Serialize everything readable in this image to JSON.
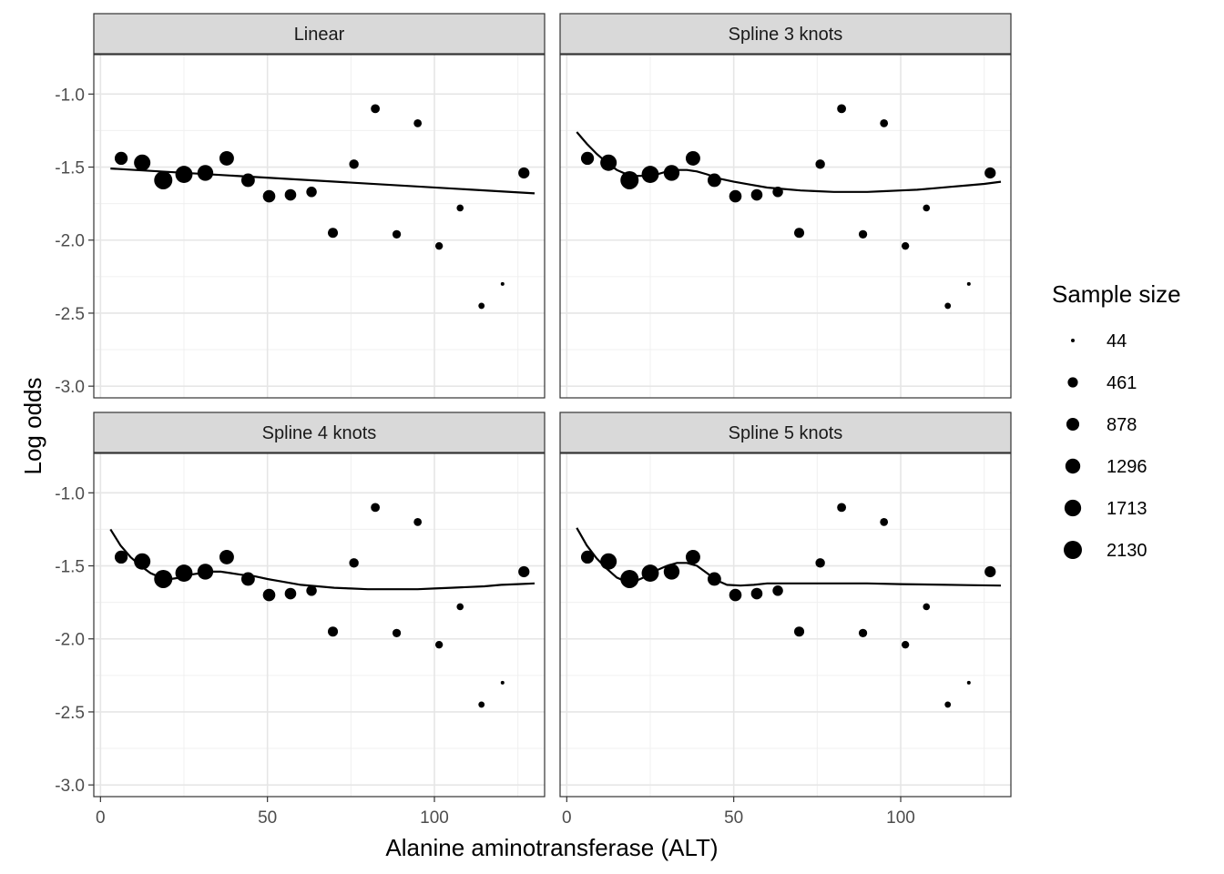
{
  "chart_data": {
    "type": "scatter",
    "facet_titles": [
      "Linear",
      "Spline 3 knots",
      "Spline 4 knots",
      "Spline 5 knots"
    ],
    "xlabel": "Alanine aminotransferase (ALT)",
    "ylabel": "Log odds",
    "xlim": [
      -2,
      133
    ],
    "ylim": [
      -3.08,
      -0.73
    ],
    "x_ticks": [
      0,
      50,
      100
    ],
    "y_ticks": [
      -3.0,
      -2.5,
      -2.0,
      -1.5,
      -1.0
    ],
    "y_tick_labels": [
      "-3.0",
      "-2.5",
      "-2.0",
      "-1.5",
      "-1.0"
    ],
    "grid": true,
    "legend": {
      "title": "Sample size",
      "position": "right",
      "entries": [
        {
          "label": "44",
          "value": 44
        },
        {
          "label": "461",
          "value": 461
        },
        {
          "label": "878",
          "value": 878
        },
        {
          "label": "1296",
          "value": 1296
        },
        {
          "label": "1713",
          "value": 1713
        },
        {
          "label": "2130",
          "value": 2130
        }
      ]
    },
    "points": [
      {
        "x": 6.2,
        "y": -1.44,
        "n": 900
      },
      {
        "x": 12.5,
        "y": -1.47,
        "n": 1650
      },
      {
        "x": 18.8,
        "y": -1.59,
        "n": 2130
      },
      {
        "x": 25.0,
        "y": -1.55,
        "n": 1850
      },
      {
        "x": 31.4,
        "y": -1.54,
        "n": 1500
      },
      {
        "x": 37.8,
        "y": -1.44,
        "n": 1200
      },
      {
        "x": 44.2,
        "y": -1.59,
        "n": 1000
      },
      {
        "x": 50.5,
        "y": -1.7,
        "n": 800
      },
      {
        "x": 56.9,
        "y": -1.69,
        "n": 650
      },
      {
        "x": 63.2,
        "y": -1.67,
        "n": 500
      },
      {
        "x": 69.6,
        "y": -1.95,
        "n": 450
      },
      {
        "x": 75.9,
        "y": -1.48,
        "n": 380
      },
      {
        "x": 82.3,
        "y": -1.1,
        "n": 320
      },
      {
        "x": 88.7,
        "y": -1.96,
        "n": 270
      },
      {
        "x": 95.0,
        "y": -1.2,
        "n": 230
      },
      {
        "x": 101.4,
        "y": -2.04,
        "n": 200
      },
      {
        "x": 107.7,
        "y": -1.78,
        "n": 150
      },
      {
        "x": 114.1,
        "y": -2.45,
        "n": 110
      },
      {
        "x": 120.4,
        "y": -2.3,
        "n": 44
      },
      {
        "x": 126.8,
        "y": -1.54,
        "n": 600
      }
    ],
    "fitted_lines": [
      {
        "panel": "Linear",
        "x": [
          3,
          130
        ],
        "y": [
          -1.51,
          -1.68
        ]
      },
      {
        "panel": "Spline 3 knots",
        "x": [
          3,
          6,
          9,
          12,
          15,
          18,
          21,
          24,
          27,
          30,
          33,
          36,
          39,
          42,
          46,
          50,
          55,
          60,
          65,
          70,
          75,
          80,
          85,
          90,
          95,
          100,
          105,
          110,
          115,
          120,
          125,
          130
        ],
        "y": [
          -1.26,
          -1.34,
          -1.41,
          -1.47,
          -1.52,
          -1.55,
          -1.56,
          -1.56,
          -1.55,
          -1.53,
          -1.52,
          -1.52,
          -1.53,
          -1.55,
          -1.58,
          -1.6,
          -1.62,
          -1.64,
          -1.65,
          -1.66,
          -1.665,
          -1.67,
          -1.67,
          -1.67,
          -1.665,
          -1.66,
          -1.655,
          -1.645,
          -1.635,
          -1.625,
          -1.615,
          -1.6
        ]
      },
      {
        "panel": "Spline 4 knots",
        "x": [
          3,
          6,
          9,
          12,
          15,
          18,
          21,
          24,
          27,
          30,
          33,
          36,
          39,
          42,
          46,
          50,
          55,
          60,
          65,
          70,
          75,
          80,
          85,
          90,
          95,
          100,
          105,
          110,
          115,
          120,
          125,
          130
        ],
        "y": [
          -1.25,
          -1.36,
          -1.44,
          -1.5,
          -1.55,
          -1.58,
          -1.59,
          -1.58,
          -1.56,
          -1.55,
          -1.54,
          -1.54,
          -1.55,
          -1.56,
          -1.57,
          -1.59,
          -1.61,
          -1.63,
          -1.64,
          -1.65,
          -1.655,
          -1.66,
          -1.66,
          -1.66,
          -1.66,
          -1.655,
          -1.65,
          -1.645,
          -1.64,
          -1.63,
          -1.625,
          -1.62
        ]
      },
      {
        "panel": "Spline 5 knots",
        "x": [
          3,
          6,
          9,
          12,
          15,
          18,
          21,
          24,
          27,
          30,
          33,
          36,
          39,
          42,
          45,
          48,
          52,
          56,
          60,
          65,
          70,
          80,
          90,
          100,
          110,
          120,
          130
        ],
        "y": [
          -1.24,
          -1.36,
          -1.45,
          -1.52,
          -1.58,
          -1.61,
          -1.6,
          -1.57,
          -1.53,
          -1.5,
          -1.48,
          -1.48,
          -1.5,
          -1.55,
          -1.6,
          -1.63,
          -1.635,
          -1.63,
          -1.62,
          -1.62,
          -1.62,
          -1.62,
          -1.62,
          -1.625,
          -1.628,
          -1.632,
          -1.635
        ]
      }
    ]
  }
}
